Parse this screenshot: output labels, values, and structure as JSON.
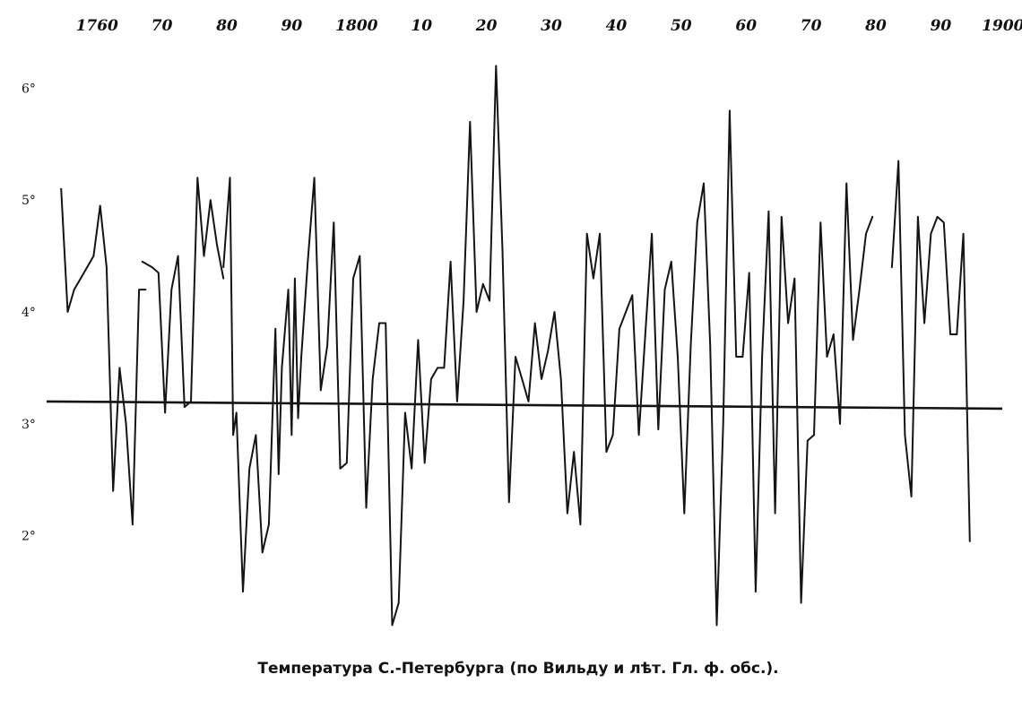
{
  "chart_data": {
    "type": "line",
    "title": "Температура С.-Петербурга (по Вильду и лѣт. Гл. ф. обс.).",
    "x_tick_labels": [
      "1760",
      "70",
      "80",
      "90",
      "1800",
      "10",
      "20",
      "30",
      "40",
      "50",
      "60",
      "70",
      "80",
      "90",
      "1900."
    ],
    "x_tick_years": [
      1760,
      1770,
      1780,
      1790,
      1800,
      1810,
      1820,
      1830,
      1840,
      1850,
      1860,
      1870,
      1880,
      1890,
      1900
    ],
    "y_tick_labels": [
      "6°",
      "5°",
      "4°",
      "3°",
      "2°"
    ],
    "y_tick_values": [
      6,
      5,
      4,
      3,
      2
    ],
    "xlim": [
      1759,
      1905
    ],
    "ylim": [
      1.1,
      6.5
    ],
    "mean_line": 3.2,
    "grid": false,
    "series": [
      {
        "segments": [
          [
            [
              1760,
              5.1
            ],
            [
              1761,
              4.0
            ],
            [
              1762,
              4.2
            ],
            [
              1763,
              4.3
            ],
            [
              1764,
              4.4
            ],
            [
              1765,
              4.5
            ],
            [
              1766,
              4.95
            ],
            [
              1767,
              4.4
            ],
            [
              1768,
              2.4
            ],
            [
              1769,
              3.5
            ],
            [
              1770,
              3.0
            ],
            [
              1771,
              2.1
            ],
            [
              1772,
              4.2
            ],
            [
              1773,
              4.2
            ]
          ],
          [
            [
              1772.5,
              4.45
            ],
            [
              1774,
              4.4
            ],
            [
              1775,
              4.35
            ],
            [
              1776,
              3.1
            ],
            [
              1777,
              4.2
            ],
            [
              1778,
              4.5
            ],
            [
              1779,
              3.15
            ],
            [
              1780,
              3.2
            ],
            [
              1781,
              5.2
            ],
            [
              1782,
              4.5
            ],
            [
              1783,
              5.0
            ],
            [
              1784,
              4.6
            ],
            [
              1785,
              4.3
            ]
          ],
          [
            [
              1785,
              4.4
            ],
            [
              1786,
              5.2
            ],
            [
              1786.5,
              2.9
            ],
            [
              1787,
              3.1
            ],
            [
              1788,
              1.5
            ],
            [
              1789,
              2.6
            ],
            [
              1790,
              2.9
            ],
            [
              1791,
              1.85
            ],
            [
              1792,
              2.1
            ],
            [
              1793,
              3.85
            ],
            [
              1793.5,
              2.55
            ],
            [
              1794,
              3.5
            ],
            [
              1795,
              4.2
            ],
            [
              1795.5,
              2.9
            ],
            [
              1796,
              4.3
            ],
            [
              1796.5,
              3.05
            ],
            [
              1797,
              3.6
            ],
            [
              1798,
              4.45
            ],
            [
              1799,
              5.2
            ],
            [
              1800,
              3.3
            ],
            [
              1801,
              3.7
            ],
            [
              1802,
              4.8
            ],
            [
              1803,
              2.6
            ],
            [
              1804,
              2.65
            ],
            [
              1805,
              4.3
            ],
            [
              1806,
              4.5
            ],
            [
              1807,
              2.25
            ],
            [
              1808,
              3.4
            ],
            [
              1809,
              3.9
            ],
            [
              1810,
              3.9
            ],
            [
              1811,
              1.2
            ],
            [
              1812,
              1.4
            ],
            [
              1813,
              3.1
            ],
            [
              1814,
              2.6
            ],
            [
              1815,
              3.75
            ],
            [
              1816,
              2.65
            ],
            [
              1817,
              3.4
            ],
            [
              1818,
              3.5
            ],
            [
              1819,
              3.5
            ],
            [
              1820,
              4.45
            ],
            [
              1821,
              3.2
            ],
            [
              1822,
              4.1
            ],
            [
              1823,
              5.7
            ],
            [
              1824,
              4.0
            ],
            [
              1825,
              4.25
            ],
            [
              1826,
              4.1
            ],
            [
              1827,
              6.2
            ],
            [
              1828,
              4.55
            ],
            [
              1829,
              2.3
            ],
            [
              1830,
              3.6
            ],
            [
              1831,
              3.4
            ],
            [
              1832,
              3.2
            ],
            [
              1833,
              3.9
            ],
            [
              1834,
              3.4
            ],
            [
              1835,
              3.65
            ],
            [
              1836,
              4.0
            ],
            [
              1837,
              3.4
            ],
            [
              1838,
              2.2
            ],
            [
              1839,
              2.75
            ],
            [
              1840,
              2.1
            ],
            [
              1841,
              4.7
            ],
            [
              1842,
              4.3
            ],
            [
              1843,
              4.7
            ],
            [
              1844,
              2.75
            ],
            [
              1845,
              2.9
            ],
            [
              1846,
              3.85
            ],
            [
              1847,
              4.0
            ],
            [
              1848,
              4.15
            ],
            [
              1849,
              2.9
            ],
            [
              1850,
              3.8
            ],
            [
              1851,
              4.7
            ],
            [
              1852,
              2.95
            ],
            [
              1853,
              4.2
            ],
            [
              1854,
              4.45
            ],
            [
              1855,
              3.6
            ],
            [
              1856,
              2.2
            ],
            [
              1857,
              3.7
            ],
            [
              1858,
              4.8
            ],
            [
              1859,
              5.15
            ],
            [
              1860,
              3.7
            ],
            [
              1861,
              1.2
            ],
            [
              1862,
              3.0
            ],
            [
              1863,
              5.8
            ],
            [
              1864,
              3.6
            ],
            [
              1865,
              3.6
            ],
            [
              1866,
              4.35
            ],
            [
              1867,
              1.5
            ],
            [
              1868,
              3.6
            ],
            [
              1869,
              4.9
            ],
            [
              1870,
              2.2
            ],
            [
              1871,
              4.85
            ],
            [
              1872,
              3.9
            ],
            [
              1873,
              4.3
            ],
            [
              1874,
              1.4
            ],
            [
              1875,
              2.85
            ],
            [
              1876,
              2.9
            ],
            [
              1877,
              4.8
            ],
            [
              1878,
              3.6
            ],
            [
              1879,
              3.8
            ],
            [
              1880,
              3.0
            ],
            [
              1881,
              5.15
            ],
            [
              1882,
              3.75
            ],
            [
              1883,
              4.2
            ],
            [
              1884,
              4.7
            ],
            [
              1885,
              4.85
            ]
          ],
          [
            [
              1888,
              4.4
            ],
            [
              1889,
              5.35
            ],
            [
              1890,
              2.9
            ],
            [
              1891,
              2.35
            ],
            [
              1892,
              4.85
            ],
            [
              1893,
              3.9
            ],
            [
              1894,
              4.7
            ],
            [
              1895,
              4.85
            ],
            [
              1896,
              4.8
            ],
            [
              1897,
              3.8
            ],
            [
              1898,
              3.8
            ],
            [
              1899,
              4.7
            ],
            [
              1900,
              1.95
            ]
          ]
        ]
      }
    ]
  }
}
